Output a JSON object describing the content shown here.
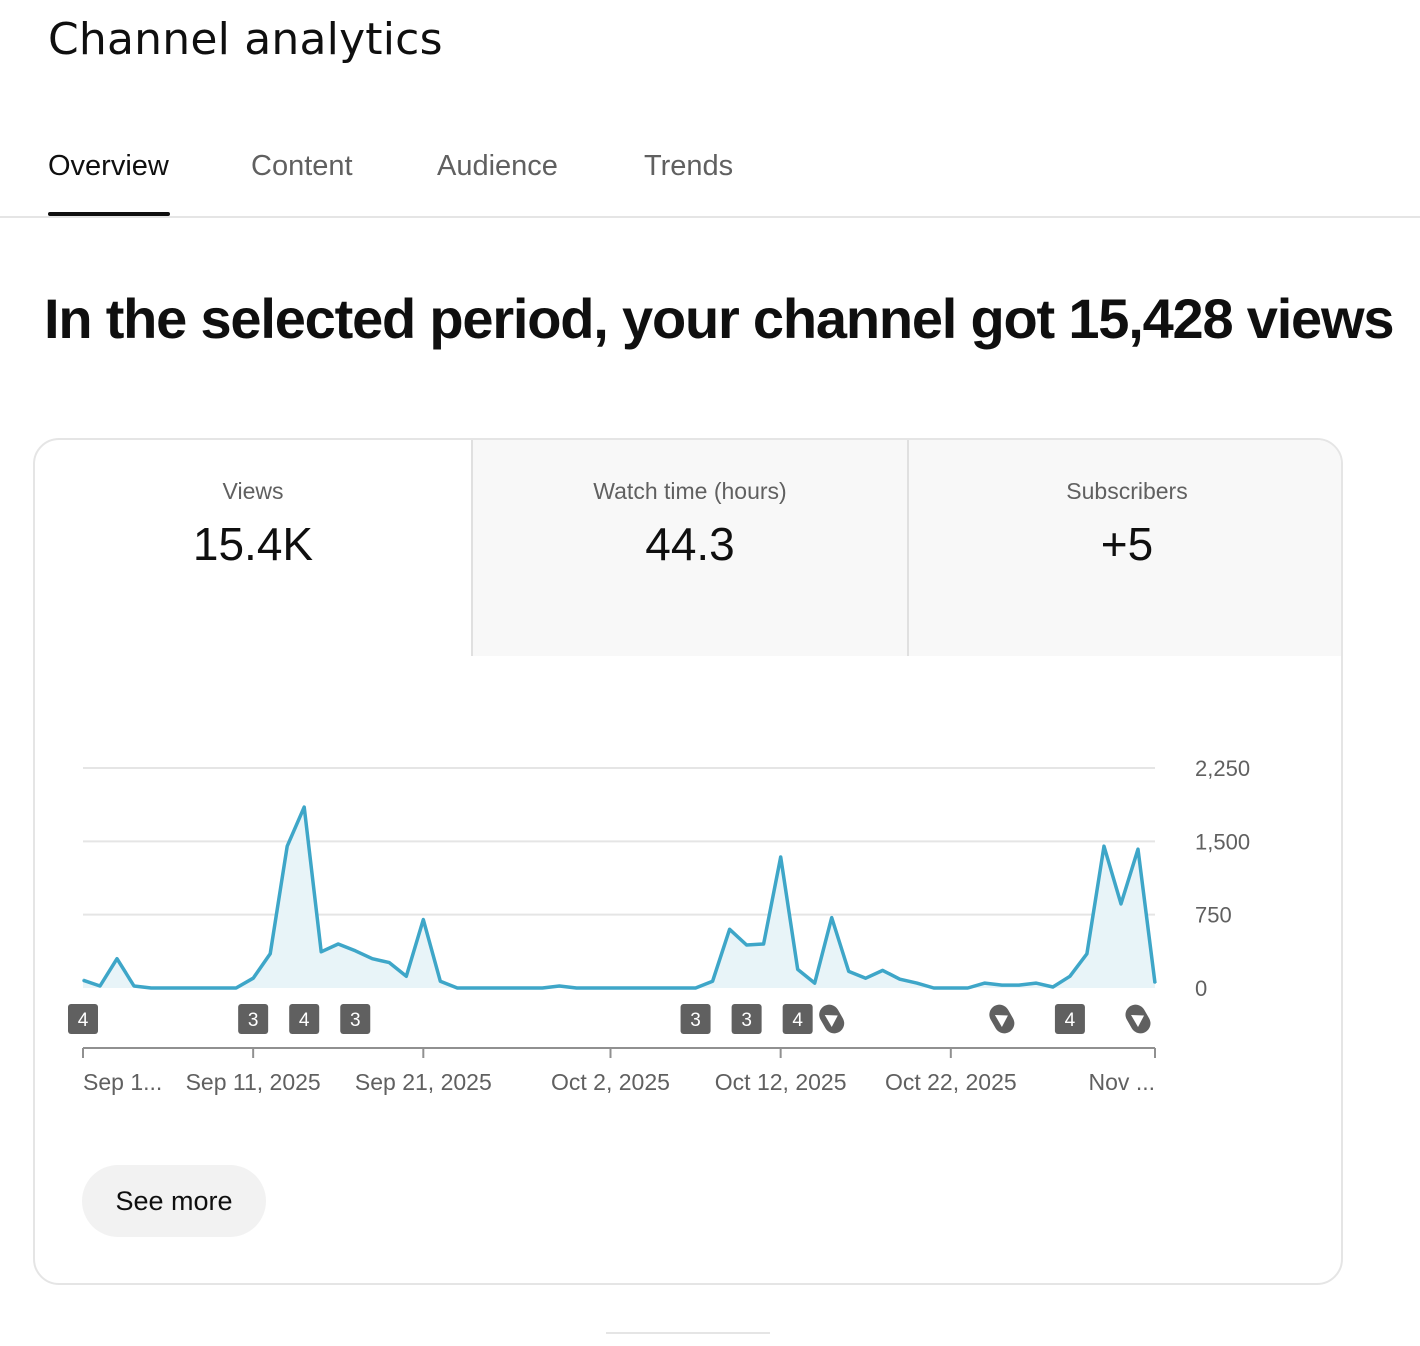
{
  "header": {
    "title": "Channel analytics"
  },
  "tabs": [
    {
      "label": "Overview",
      "active": true
    },
    {
      "label": "Content",
      "active": false
    },
    {
      "label": "Audience",
      "active": false
    },
    {
      "label": "Trends",
      "active": false
    }
  ],
  "headline": "In the selected period, your channel got 15,428 views",
  "metrics": [
    {
      "label": "Views",
      "value": "15.4K",
      "selected": true
    },
    {
      "label": "Watch time (hours)",
      "value": "44.3",
      "selected": false
    },
    {
      "label": "Subscribers",
      "value": "+5",
      "selected": false
    }
  ],
  "chart_data": {
    "type": "area",
    "series": [
      {
        "values": [
          80,
          20,
          300,
          20,
          0,
          0,
          0,
          0,
          0,
          0,
          100,
          350,
          1450,
          1850,
          370,
          450,
          380,
          300,
          260,
          120,
          700,
          70,
          0,
          0,
          0,
          0,
          0,
          0,
          20,
          0,
          0,
          0,
          0,
          0,
          0,
          0,
          0,
          70,
          600,
          440,
          450,
          1340,
          190,
          50,
          720,
          170,
          100,
          180,
          90,
          50,
          0,
          0,
          0,
          50,
          30,
          30,
          50,
          10,
          120,
          350,
          1450,
          860,
          1420,
          50
        ]
      }
    ],
    "x_tick_labels": [
      "Sep 1...",
      "Sep 11, 2025",
      "Sep 21, 2025",
      "Oct 2, 2025",
      "Oct 12, 2025",
      "Oct 22, 2025",
      "Nov ..."
    ],
    "y_tick_labels": [
      "0",
      "750",
      "1,500",
      "2,250"
    ],
    "ylim": [
      0,
      2250
    ],
    "grid": true,
    "color": "#3ea6c8",
    "fill_color": "#e8f4f8",
    "publish_markers": [
      {
        "index": 0,
        "kind": "count",
        "label": "4"
      },
      {
        "index": 10,
        "kind": "count",
        "label": "3"
      },
      {
        "index": 13,
        "kind": "count",
        "label": "4"
      },
      {
        "index": 16,
        "kind": "count",
        "label": "3"
      },
      {
        "index": 36,
        "kind": "count",
        "label": "3"
      },
      {
        "index": 39,
        "kind": "count",
        "label": "3"
      },
      {
        "index": 42,
        "kind": "count",
        "label": "4"
      },
      {
        "index": 44,
        "kind": "shorts"
      },
      {
        "index": 54,
        "kind": "shorts"
      },
      {
        "index": 58,
        "kind": "count",
        "label": "4"
      },
      {
        "index": 62,
        "kind": "shorts"
      }
    ]
  },
  "actions": {
    "see_more_label": "See more"
  }
}
